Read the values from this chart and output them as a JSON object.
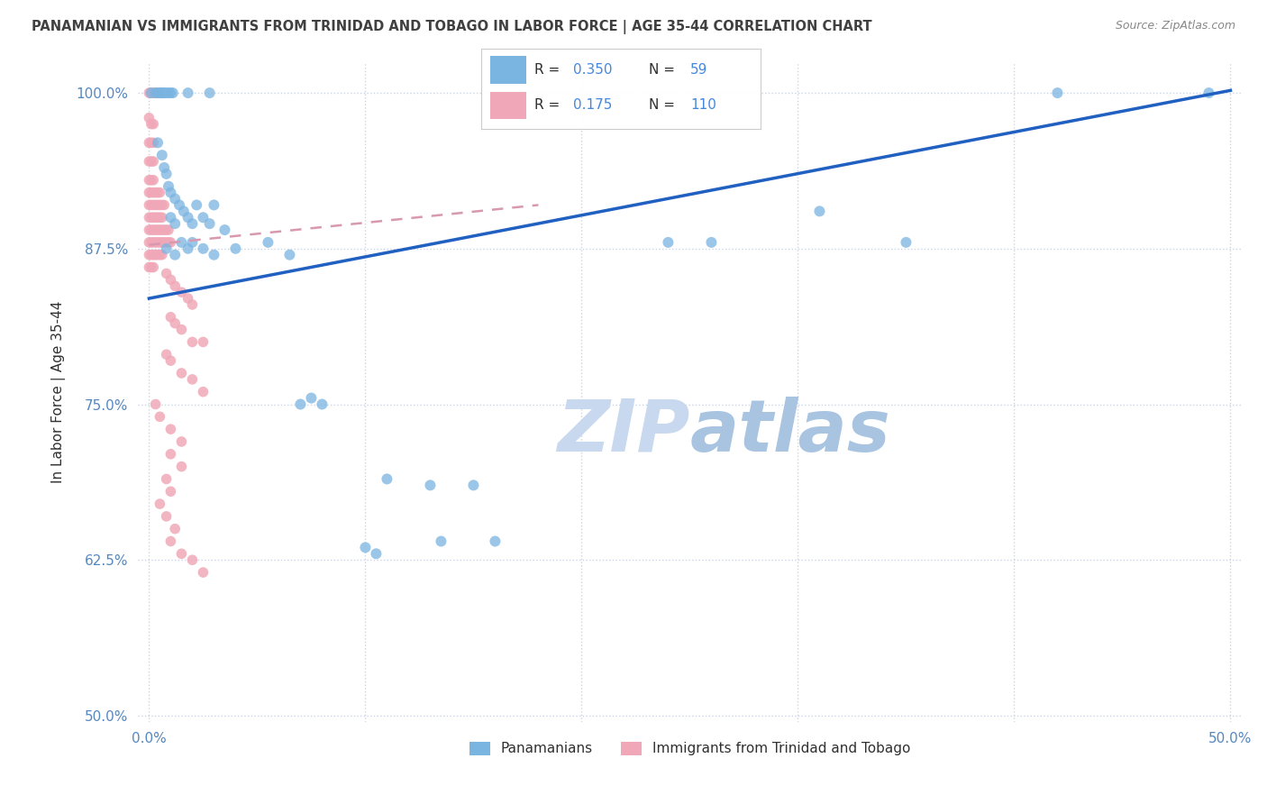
{
  "title": "PANAMANIAN VS IMMIGRANTS FROM TRINIDAD AND TOBAGO IN LABOR FORCE | AGE 35-44 CORRELATION CHART",
  "source": "Source: ZipAtlas.com",
  "ylabel": "In Labor Force | Age 35-44",
  "xlim": [
    -0.005,
    0.505
  ],
  "ylim": [
    0.495,
    1.025
  ],
  "yticks": [
    0.5,
    0.625,
    0.75,
    0.875,
    1.0
  ],
  "ytick_labels": [
    "50.0%",
    "62.5%",
    "75.0%",
    "87.5%",
    "100.0%"
  ],
  "xticks": [
    0.0,
    0.1,
    0.2,
    0.3,
    0.4,
    0.5
  ],
  "xtick_labels": [
    "0.0%",
    "",
    "",
    "",
    "",
    "50.0%"
  ],
  "legend_blue_label": "Panamanians",
  "legend_pink_label": "Immigrants from Trinidad and Tobago",
  "R_blue": 0.35,
  "N_blue": 59,
  "R_pink": 0.175,
  "N_pink": 110,
  "blue_color": "#7ab4e0",
  "pink_color": "#f0a8b8",
  "blue_line_color": "#2060c0",
  "pink_line_color": "#d899b0",
  "grid_color": "#c8d4e8",
  "watermark_zip_color": "#c8d8ee",
  "watermark_atlas_color": "#a8c4e0",
  "background_color": "#ffffff",
  "title_color": "#404040",
  "source_color": "#888888",
  "axis_label_color": "#303030",
  "tick_color": "#5588c0",
  "legend_r_color": "#303030",
  "legend_val_color": "#4488dd",
  "blue_scatter": [
    [
      0.001,
      1.0
    ],
    [
      0.003,
      1.0
    ],
    [
      0.004,
      1.0
    ],
    [
      0.005,
      1.0
    ],
    [
      0.006,
      1.0
    ],
    [
      0.006,
      1.0
    ],
    [
      0.007,
      1.0
    ],
    [
      0.008,
      1.0
    ],
    [
      0.009,
      1.0
    ],
    [
      0.01,
      1.0
    ],
    [
      0.011,
      1.0
    ],
    [
      0.018,
      1.0
    ],
    [
      0.028,
      1.0
    ],
    [
      0.004,
      0.96
    ],
    [
      0.006,
      0.95
    ],
    [
      0.007,
      0.94
    ],
    [
      0.008,
      0.935
    ],
    [
      0.009,
      0.925
    ],
    [
      0.01,
      0.92
    ],
    [
      0.012,
      0.915
    ],
    [
      0.01,
      0.9
    ],
    [
      0.012,
      0.895
    ],
    [
      0.014,
      0.91
    ],
    [
      0.016,
      0.905
    ],
    [
      0.018,
      0.9
    ],
    [
      0.02,
      0.895
    ],
    [
      0.022,
      0.91
    ],
    [
      0.025,
      0.9
    ],
    [
      0.028,
      0.895
    ],
    [
      0.03,
      0.91
    ],
    [
      0.035,
      0.89
    ],
    [
      0.008,
      0.875
    ],
    [
      0.012,
      0.87
    ],
    [
      0.015,
      0.88
    ],
    [
      0.018,
      0.875
    ],
    [
      0.02,
      0.88
    ],
    [
      0.025,
      0.875
    ],
    [
      0.03,
      0.87
    ],
    [
      0.04,
      0.875
    ],
    [
      0.055,
      0.88
    ],
    [
      0.065,
      0.87
    ],
    [
      0.07,
      0.75
    ],
    [
      0.075,
      0.755
    ],
    [
      0.08,
      0.75
    ],
    [
      0.11,
      0.69
    ],
    [
      0.13,
      0.685
    ],
    [
      0.15,
      0.685
    ],
    [
      0.135,
      0.64
    ],
    [
      0.1,
      0.635
    ],
    [
      0.105,
      0.63
    ],
    [
      0.16,
      0.64
    ],
    [
      0.24,
      0.88
    ],
    [
      0.26,
      0.88
    ],
    [
      0.31,
      0.905
    ],
    [
      0.35,
      0.88
    ],
    [
      0.42,
      1.0
    ],
    [
      0.49,
      1.0
    ]
  ],
  "pink_scatter": [
    [
      0.0,
      1.0
    ],
    [
      0.001,
      1.0
    ],
    [
      0.001,
      1.0
    ],
    [
      0.002,
      1.0
    ],
    [
      0.003,
      1.0
    ],
    [
      0.004,
      1.0
    ],
    [
      0.005,
      1.0
    ],
    [
      0.0,
      0.98
    ],
    [
      0.001,
      0.975
    ],
    [
      0.002,
      0.975
    ],
    [
      0.0,
      0.96
    ],
    [
      0.001,
      0.96
    ],
    [
      0.002,
      0.96
    ],
    [
      0.0,
      0.945
    ],
    [
      0.001,
      0.945
    ],
    [
      0.002,
      0.945
    ],
    [
      0.0,
      0.93
    ],
    [
      0.001,
      0.93
    ],
    [
      0.002,
      0.93
    ],
    [
      0.0,
      0.92
    ],
    [
      0.001,
      0.92
    ],
    [
      0.002,
      0.92
    ],
    [
      0.003,
      0.92
    ],
    [
      0.004,
      0.92
    ],
    [
      0.005,
      0.92
    ],
    [
      0.0,
      0.91
    ],
    [
      0.001,
      0.91
    ],
    [
      0.002,
      0.91
    ],
    [
      0.003,
      0.91
    ],
    [
      0.004,
      0.91
    ],
    [
      0.005,
      0.91
    ],
    [
      0.006,
      0.91
    ],
    [
      0.007,
      0.91
    ],
    [
      0.0,
      0.9
    ],
    [
      0.001,
      0.9
    ],
    [
      0.002,
      0.9
    ],
    [
      0.003,
      0.9
    ],
    [
      0.004,
      0.9
    ],
    [
      0.005,
      0.9
    ],
    [
      0.006,
      0.9
    ],
    [
      0.0,
      0.89
    ],
    [
      0.001,
      0.89
    ],
    [
      0.002,
      0.89
    ],
    [
      0.003,
      0.89
    ],
    [
      0.004,
      0.89
    ],
    [
      0.005,
      0.89
    ],
    [
      0.006,
      0.89
    ],
    [
      0.007,
      0.89
    ],
    [
      0.008,
      0.89
    ],
    [
      0.009,
      0.89
    ],
    [
      0.0,
      0.88
    ],
    [
      0.001,
      0.88
    ],
    [
      0.002,
      0.88
    ],
    [
      0.003,
      0.88
    ],
    [
      0.004,
      0.88
    ],
    [
      0.005,
      0.88
    ],
    [
      0.006,
      0.88
    ],
    [
      0.007,
      0.88
    ],
    [
      0.008,
      0.88
    ],
    [
      0.009,
      0.88
    ],
    [
      0.01,
      0.88
    ],
    [
      0.0,
      0.87
    ],
    [
      0.001,
      0.87
    ],
    [
      0.002,
      0.87
    ],
    [
      0.003,
      0.87
    ],
    [
      0.004,
      0.87
    ],
    [
      0.005,
      0.87
    ],
    [
      0.006,
      0.87
    ],
    [
      0.0,
      0.86
    ],
    [
      0.001,
      0.86
    ],
    [
      0.002,
      0.86
    ],
    [
      0.008,
      0.855
    ],
    [
      0.01,
      0.85
    ],
    [
      0.012,
      0.845
    ],
    [
      0.015,
      0.84
    ],
    [
      0.018,
      0.835
    ],
    [
      0.02,
      0.83
    ],
    [
      0.01,
      0.82
    ],
    [
      0.012,
      0.815
    ],
    [
      0.015,
      0.81
    ],
    [
      0.02,
      0.8
    ],
    [
      0.025,
      0.8
    ],
    [
      0.008,
      0.79
    ],
    [
      0.01,
      0.785
    ],
    [
      0.015,
      0.775
    ],
    [
      0.02,
      0.77
    ],
    [
      0.025,
      0.76
    ],
    [
      0.003,
      0.75
    ],
    [
      0.005,
      0.74
    ],
    [
      0.01,
      0.73
    ],
    [
      0.015,
      0.72
    ],
    [
      0.01,
      0.71
    ],
    [
      0.015,
      0.7
    ],
    [
      0.008,
      0.69
    ],
    [
      0.01,
      0.68
    ],
    [
      0.005,
      0.67
    ],
    [
      0.008,
      0.66
    ],
    [
      0.012,
      0.65
    ],
    [
      0.01,
      0.64
    ],
    [
      0.015,
      0.63
    ],
    [
      0.02,
      0.625
    ],
    [
      0.025,
      0.615
    ]
  ]
}
